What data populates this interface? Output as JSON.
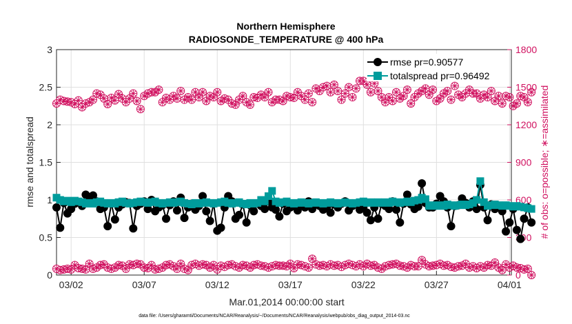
{
  "chart_data": {
    "type": "line",
    "title_line1": "Northern Hemisphere",
    "title_line2": "RADIOSONDE_TEMPERATURE @ 400 hPa",
    "xlabel": "Mar.01,2014 00:00:00 start",
    "ylabel_left": "rmse and totalspread",
    "ylabel_right": "# of obs: o=possible; ∗=assimilated",
    "xlim": [
      0,
      31.125
    ],
    "ylim_left": [
      0,
      3
    ],
    "ylim_right": [
      0,
      1800
    ],
    "x_ticks": [
      {
        "x": 1,
        "label": "03/02"
      },
      {
        "x": 6,
        "label": "03/07"
      },
      {
        "x": 11,
        "label": "03/12"
      },
      {
        "x": 16,
        "label": "03/17"
      },
      {
        "x": 21,
        "label": "03/22"
      },
      {
        "x": 26,
        "label": "03/27"
      },
      {
        "x": 31,
        "label": "04/01"
      }
    ],
    "y_ticks_left": [
      "0",
      "0.5",
      "1",
      "1.5",
      "2",
      "2.5",
      "3"
    ],
    "y_ticks_left_values": [
      0,
      0.5,
      1,
      1.5,
      2,
      2.5,
      3
    ],
    "y_ticks_right": [
      "0",
      "300",
      "600",
      "900",
      "1200",
      "1500",
      "1800"
    ],
    "y_ticks_right_values": [
      0,
      300,
      600,
      900,
      1200,
      1500,
      1800
    ],
    "grid": true,
    "legend_position": "top-right",
    "series": [
      {
        "name": "rmse pr=0.90577",
        "axis": "left",
        "color": "#000000",
        "marker": "circle",
        "values": [
          0.9,
          0.63,
          0.96,
          0.82,
          0.88,
          0.95,
          0.97,
          0.92,
          1.07,
          1.03,
          1.06,
          0.98,
          0.88,
          0.9,
          0.65,
          0.95,
          0.74,
          0.9,
          0.94,
          0.97,
          0.96,
          0.62,
          0.92,
          0.95,
          0.98,
          0.88,
          1.0,
          0.85,
          0.9,
          0.93,
          0.75,
          0.93,
          0.98,
          0.86,
          1.03,
          0.76,
          0.9,
          0.95,
          0.87,
          0.92,
          1.05,
          0.85,
          0.72,
          0.95,
          0.59,
          0.63,
          0.9,
          1.05,
          0.98,
          0.75,
          0.8,
          0.94,
          0.7,
          0.93,
          0.85,
          0.95,
          0.92,
          0.88,
          0.98,
          0.9,
          0.87,
          0.78,
          0.95,
          0.85,
          0.9,
          0.92,
          0.86,
          0.93,
          0.9,
          0.98,
          0.88,
          0.95,
          0.92,
          0.87,
          0.9,
          0.83,
          0.94,
          0.9,
          0.95,
          0.98,
          0.86,
          0.92,
          0.95,
          0.87,
          0.9,
          0.83,
          0.73,
          0.9,
          0.75,
          0.95,
          0.92,
          0.88,
          0.98,
          0.87,
          0.7,
          0.95,
          1.07,
          0.94,
          0.88,
          0.91,
          1.22,
          0.96,
          0.9,
          0.9,
          0.95,
          1.05,
          0.98,
          0.9,
          0.65,
          0.92,
          0.93,
          1.02,
          0.96,
          0.9,
          0.98,
          0.88,
          1.2,
          0.9,
          0.73,
          0.94,
          0.88,
          0.92,
          0.85,
          0.58,
          0.7,
          0.88,
          0.6,
          0.48,
          0.75,
          0.9,
          0.7
        ]
      },
      {
        "name": "totalspread pr=0.96492",
        "axis": "left",
        "color": "#009c9c",
        "marker": "square",
        "values": [
          1.03,
          1.0,
          0.98,
          0.99,
          0.97,
          0.99,
          0.98,
          0.97,
          0.95,
          0.96,
          0.95,
          0.97,
          0.98,
          0.96,
          0.95,
          0.96,
          0.95,
          0.97,
          0.98,
          0.96,
          0.95,
          0.96,
          0.97,
          0.98,
          0.97,
          0.96,
          0.97,
          0.98,
          0.96,
          0.95,
          0.96,
          0.97,
          0.96,
          0.97,
          0.98,
          0.96,
          0.95,
          0.94,
          0.96,
          0.95,
          0.96,
          0.97,
          0.96,
          0.95,
          0.96,
          0.97,
          0.98,
          0.96,
          0.95,
          0.96,
          0.97,
          0.95,
          0.94,
          0.96,
          0.95,
          0.96,
          1.0,
          0.98,
          1.05,
          1.12,
          0.98,
          0.96,
          0.97,
          0.98,
          0.96,
          0.95,
          0.96,
          0.97,
          0.96,
          0.95,
          0.96,
          0.97,
          0.96,
          0.95,
          0.96,
          0.97,
          0.96,
          0.95,
          0.96,
          0.97,
          0.96,
          0.95,
          0.96,
          0.97,
          0.98,
          0.96,
          0.97,
          0.96,
          0.97,
          0.96,
          0.97,
          0.96,
          0.98,
          0.97,
          0.96,
          0.97,
          0.98,
          0.97,
          0.99,
          1.0,
          1.03,
          1.01,
          0.92,
          0.93,
          0.92,
          0.93,
          0.92,
          0.94,
          0.93,
          0.92,
          0.93,
          0.94,
          0.93,
          0.94,
          0.96,
          1.0,
          1.25,
          0.97,
          0.92,
          0.93,
          0.94,
          0.93,
          0.92,
          0.93,
          0.92,
          0.91,
          0.92,
          0.91,
          0.9,
          0.89,
          0.88
        ]
      },
      {
        "name": "possible",
        "axis": "right",
        "color": "#d0105f",
        "marker": "circle-open",
        "values": [
          1370,
          1400,
          1390,
          1385,
          1380,
          1365,
          1395,
          1340,
          1370,
          1380,
          1400,
          1450,
          1440,
          1410,
          1365,
          1415,
          1395,
          1445,
          1410,
          1380,
          1410,
          1450,
          1390,
          1325,
          1430,
          1450,
          1460,
          1460,
          1480,
          1380,
          1415,
          1400,
          1430,
          1410,
          1470,
          1400,
          1420,
          1400,
          1460,
          1420,
          1460,
          1390,
          1430,
          1420,
          1460,
          1390,
          1410,
          1400,
          1370,
          1360,
          1400,
          1430,
          1380,
          1360,
          1420,
          1415,
          1440,
          1420,
          1460,
          1380,
          1400,
          1400,
          1390,
          1430,
          1420,
          1415,
          1460,
          1430,
          1400,
          1450,
          1380,
          1490,
          1470,
          1500,
          1510,
          1460,
          1520,
          1470,
          1400,
          1450,
          1500,
          1420,
          1490,
          1550,
          1550,
          1520,
          1460,
          1530,
          1470,
          1420,
          1380,
          1420,
          1390,
          1460,
          1410,
          1430,
          1480,
          1370,
          1420,
          1450,
          1470,
          1490,
          1440,
          1480,
          1390,
          1410,
          1450,
          1470,
          1400,
          1510,
          1440,
          1420,
          1450,
          1480,
          1450,
          1450,
          1410,
          1440,
          1420,
          1470,
          1390,
          1430,
          1370,
          1430,
          1420,
          1350,
          1370,
          1430,
          1420,
          1380,
          1460
        ],
        "possible_low": [
          50,
          40,
          45,
          50,
          45,
          80,
          55,
          50,
          45,
          90,
          50,
          60,
          80,
          85,
          60,
          50,
          60,
          80,
          75,
          50,
          85,
          80,
          90,
          85,
          60,
          55,
          80,
          45,
          50,
          60,
          80,
          85,
          70,
          50,
          90,
          50,
          40,
          80,
          90,
          75,
          85,
          80,
          60,
          80,
          45,
          75,
          65,
          80,
          85,
          70,
          60,
          80,
          75,
          60,
          80,
          85,
          75,
          70,
          60,
          70,
          80,
          75,
          75,
          70,
          90,
          55,
          85,
          80,
          70,
          60,
          130,
          85,
          75,
          80,
          70,
          85,
          75,
          80,
          65,
          80,
          90,
          80,
          70,
          85,
          70,
          90,
          75,
          80,
          60,
          50,
          70,
          80,
          85,
          90,
          75,
          70,
          60,
          80,
          70,
          70,
          120,
          85,
          70,
          75,
          80,
          90,
          75,
          80,
          65,
          60,
          70,
          75,
          90,
          60,
          70,
          55,
          70,
          60,
          80,
          75,
          100,
          60,
          40,
          85,
          60,
          75,
          60,
          55,
          45,
          50,
          0
        ]
      }
    ]
  },
  "footer": {
    "data_file": "data file: /Users/gharamti/Documents/NCAR/Reanalysis/~/Documents/NCAR/Reanalysis/webpub/obs_diag_output_2014-03.nc"
  },
  "colors": {
    "rmse": "#000000",
    "totalspread": "#009c9c",
    "obs": "#d0105f",
    "grid": "#dfdfdf"
  }
}
